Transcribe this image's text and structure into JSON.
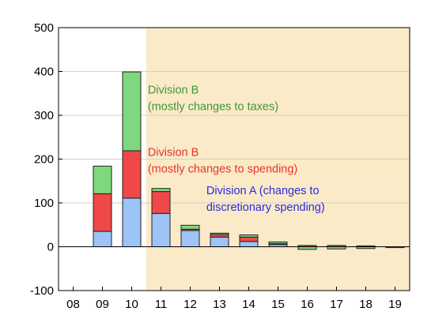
{
  "chart_data": {
    "type": "bar",
    "stacked": true,
    "categories": [
      "08",
      "09",
      "10",
      "11",
      "12",
      "13",
      "14",
      "15",
      "16",
      "17",
      "18",
      "19"
    ],
    "series": [
      {
        "name": "Division A (changes to discretionary spending)",
        "color": "#9dc3f7",
        "values": [
          0,
          35,
          111,
          76,
          37,
          22,
          12,
          5,
          0,
          0,
          0,
          0
        ]
      },
      {
        "name": "Division B (mostly changes to spending)",
        "color": "#f04848",
        "values": [
          0,
          86,
          108,
          50,
          3,
          6,
          10,
          2,
          3,
          3,
          2,
          0
        ]
      },
      {
        "name": "Division B (mostly changes to taxes)",
        "color": "#7ed87e",
        "values": [
          0,
          63,
          180,
          7,
          9,
          3,
          5,
          4,
          -6,
          -5,
          -4,
          -2
        ]
      }
    ],
    "ylim": [
      -100,
      500
    ],
    "yticks": [
      -100,
      0,
      100,
      200,
      300,
      400,
      500
    ],
    "grid": true,
    "shaded_region": {
      "from_category": "11",
      "to_category": "19",
      "color": "#fbeac7"
    },
    "annotations": [
      {
        "lines": [
          "Division B",
          "(mostly changes to taxes)"
        ],
        "color": "#3a9a3a",
        "anchor_category": "10",
        "anchor_y": 350
      },
      {
        "lines": [
          "Division B",
          "(mostly changes to spending)"
        ],
        "color": "#e8342a",
        "anchor_category": "10",
        "anchor_y": 207
      },
      {
        "lines": [
          "Division A (changes to",
          "discretionary spending)"
        ],
        "color": "#2a2ae0",
        "anchor_category": "12",
        "anchor_y": 120
      }
    ],
    "title": "",
    "xlabel": "",
    "ylabel": ""
  }
}
